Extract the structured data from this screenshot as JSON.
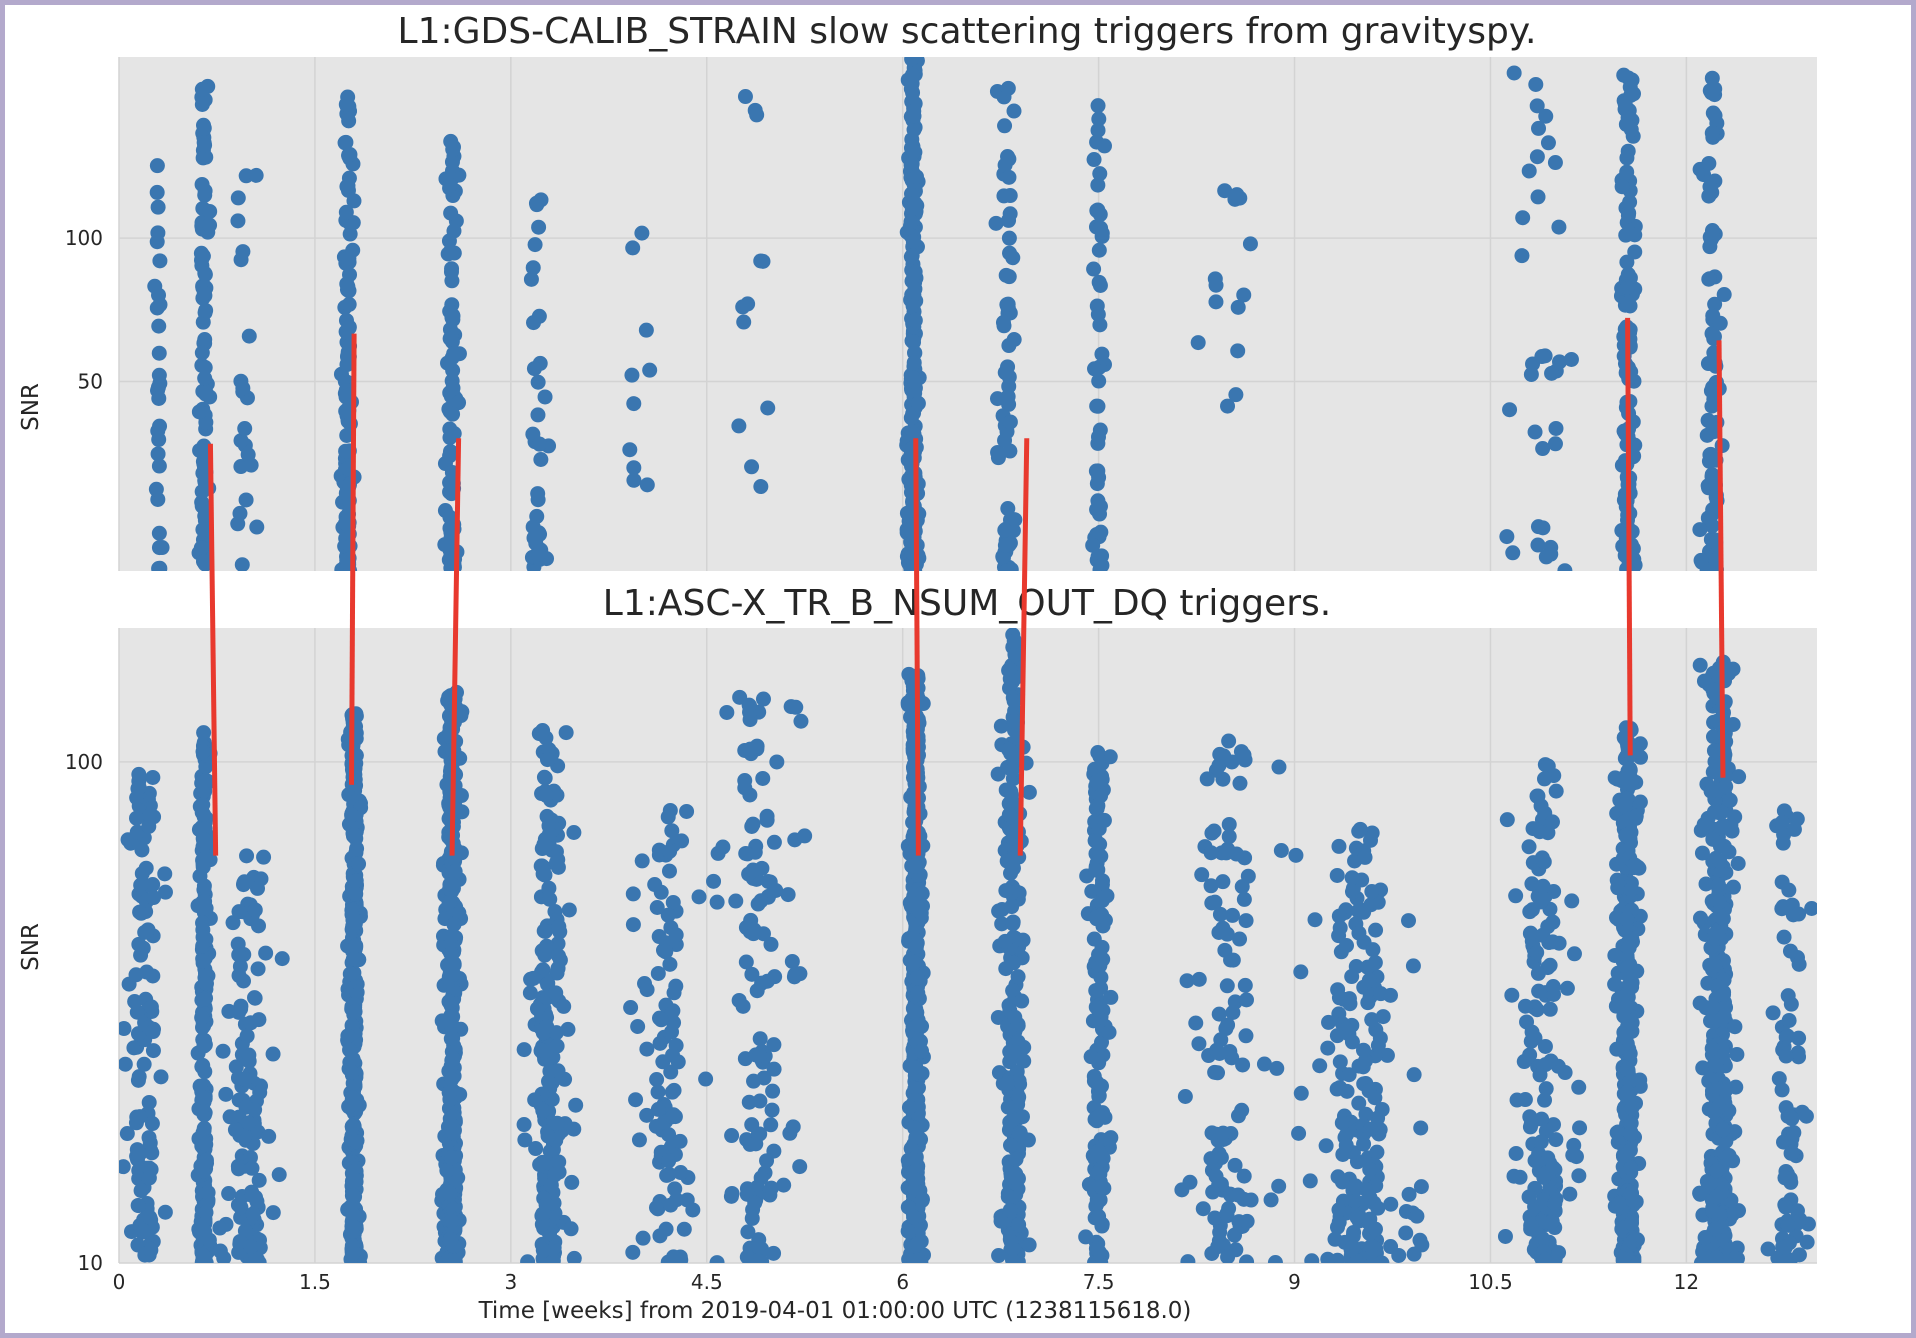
{
  "colors": {
    "frame": "#b3a9cc",
    "plot_bg": "#e5e5e5",
    "grid": "#d3d3d3",
    "points": "#3a76b0",
    "annotation_lines": "#e8392e"
  },
  "chart_data": [
    {
      "type": "scatter",
      "title": "L1:GDS-CALIB_STRAIN slow scattering triggers from gravityspy.",
      "ylabel": "SNR",
      "y_scale": "log",
      "ylim": [
        20,
        240
      ],
      "xlim": [
        0,
        13
      ],
      "yticks": [
        {
          "value": 50,
          "label": "50"
        },
        {
          "value": 100,
          "label": "100"
        }
      ],
      "xticks": [
        0,
        1.5,
        3,
        4.5,
        6,
        7.5,
        9,
        10.5,
        12
      ],
      "grid": true,
      "clusters": [
        {
          "x": 0.3,
          "count": 30,
          "spread": 0.04,
          "ymin": 20,
          "ymax": 180
        },
        {
          "x": 0.65,
          "count": 95,
          "spread": 0.045,
          "ymin": 20,
          "ymax": 210
        },
        {
          "x": 0.95,
          "count": 22,
          "spread": 0.12,
          "ymin": 20,
          "ymax": 150
        },
        {
          "x": 1.75,
          "count": 110,
          "spread": 0.05,
          "ymin": 20,
          "ymax": 210
        },
        {
          "x": 2.55,
          "count": 85,
          "spread": 0.06,
          "ymin": 20,
          "ymax": 170
        },
        {
          "x": 3.2,
          "count": 35,
          "spread": 0.1,
          "ymin": 20,
          "ymax": 130
        },
        {
          "x": 4.0,
          "count": 10,
          "spread": 0.2,
          "ymin": 30,
          "ymax": 110
        },
        {
          "x": 4.85,
          "count": 12,
          "spread": 0.3,
          "ymin": 30,
          "ymax": 230
        },
        {
          "x": 6.08,
          "count": 240,
          "spread": 0.05,
          "ymin": 20,
          "ymax": 240
        },
        {
          "x": 6.8,
          "count": 65,
          "spread": 0.09,
          "ymin": 20,
          "ymax": 210
        },
        {
          "x": 7.5,
          "count": 50,
          "spread": 0.05,
          "ymin": 20,
          "ymax": 190
        },
        {
          "x": 8.5,
          "count": 14,
          "spread": 0.35,
          "ymin": 40,
          "ymax": 130
        },
        {
          "x": 10.9,
          "count": 35,
          "spread": 0.3,
          "ymin": 20,
          "ymax": 230
        },
        {
          "x": 11.55,
          "count": 130,
          "spread": 0.06,
          "ymin": 20,
          "ymax": 220
        },
        {
          "x": 12.2,
          "count": 95,
          "spread": 0.1,
          "ymin": 20,
          "ymax": 220
        }
      ]
    },
    {
      "type": "scatter",
      "title": "L1:ASC-X_TR_B_NSUM_OUT_DQ triggers.",
      "ylabel": "SNR",
      "xlabel": "Time [weeks] from 2019-04-01 01:00:00 UTC (1238115618.0)",
      "y_scale": "log",
      "ylim": [
        10,
        185
      ],
      "xlim": [
        0,
        13
      ],
      "yticks": [
        {
          "value": 10,
          "label": "10"
        },
        {
          "value": 100,
          "label": "100"
        }
      ],
      "xticks": [
        0,
        1.5,
        3,
        4.5,
        6,
        7.5,
        9,
        10.5,
        12
      ],
      "xticklabels": [
        "0",
        "1.5",
        "3",
        "4.5",
        "6",
        "7.5",
        "9",
        "10.5",
        "12"
      ],
      "grid": true,
      "clusters": [
        {
          "x": 0.2,
          "count": 120,
          "spread": 0.2,
          "ymin": 10,
          "ymax": 95
        },
        {
          "x": 0.65,
          "count": 220,
          "spread": 0.05,
          "ymin": 10,
          "ymax": 118
        },
        {
          "x": 1.0,
          "count": 120,
          "spread": 0.25,
          "ymin": 10,
          "ymax": 65
        },
        {
          "x": 1.8,
          "count": 360,
          "spread": 0.05,
          "ymin": 10,
          "ymax": 125
        },
        {
          "x": 2.55,
          "count": 360,
          "spread": 0.08,
          "ymin": 10,
          "ymax": 140
        },
        {
          "x": 3.3,
          "count": 200,
          "spread": 0.2,
          "ymin": 10,
          "ymax": 120
        },
        {
          "x": 4.2,
          "count": 100,
          "spread": 0.3,
          "ymin": 10,
          "ymax": 80
        },
        {
          "x": 4.9,
          "count": 130,
          "spread": 0.35,
          "ymin": 10,
          "ymax": 140
        },
        {
          "x": 6.1,
          "count": 500,
          "spread": 0.06,
          "ymin": 10,
          "ymax": 150
        },
        {
          "x": 6.85,
          "count": 240,
          "spread": 0.12,
          "ymin": 10,
          "ymax": 180
        },
        {
          "x": 7.5,
          "count": 150,
          "spread": 0.1,
          "ymin": 10,
          "ymax": 105
        },
        {
          "x": 8.5,
          "count": 120,
          "spread": 0.4,
          "ymin": 10,
          "ymax": 115
        },
        {
          "x": 9.5,
          "count": 200,
          "spread": 0.5,
          "ymin": 10,
          "ymax": 78
        },
        {
          "x": 10.9,
          "count": 160,
          "spread": 0.3,
          "ymin": 10,
          "ymax": 100
        },
        {
          "x": 11.55,
          "count": 340,
          "spread": 0.1,
          "ymin": 10,
          "ymax": 120
        },
        {
          "x": 12.25,
          "count": 360,
          "spread": 0.15,
          "ymin": 10,
          "ymax": 160
        },
        {
          "x": 12.8,
          "count": 80,
          "spread": 0.2,
          "ymin": 10,
          "ymax": 80
        }
      ]
    }
  ],
  "annotations": {
    "connector_lines": [
      {
        "top_x": 0.7,
        "top_snr": 37,
        "bottom_x": 0.74,
        "bottom_snr": 65
      },
      {
        "top_x": 1.8,
        "top_snr": 63,
        "bottom_x": 1.78,
        "bottom_snr": 90
      },
      {
        "top_x": 2.6,
        "top_snr": 38,
        "bottom_x": 2.55,
        "bottom_snr": 65
      },
      {
        "top_x": 6.1,
        "top_snr": 38,
        "bottom_x": 6.12,
        "bottom_snr": 65
      },
      {
        "top_x": 6.95,
        "top_snr": 38,
        "bottom_x": 6.9,
        "bottom_snr": 65
      },
      {
        "top_x": 11.55,
        "top_snr": 68,
        "bottom_x": 11.57,
        "bottom_snr": 103
      },
      {
        "top_x": 12.25,
        "top_snr": 61,
        "bottom_x": 12.28,
        "bottom_snr": 93
      }
    ]
  }
}
